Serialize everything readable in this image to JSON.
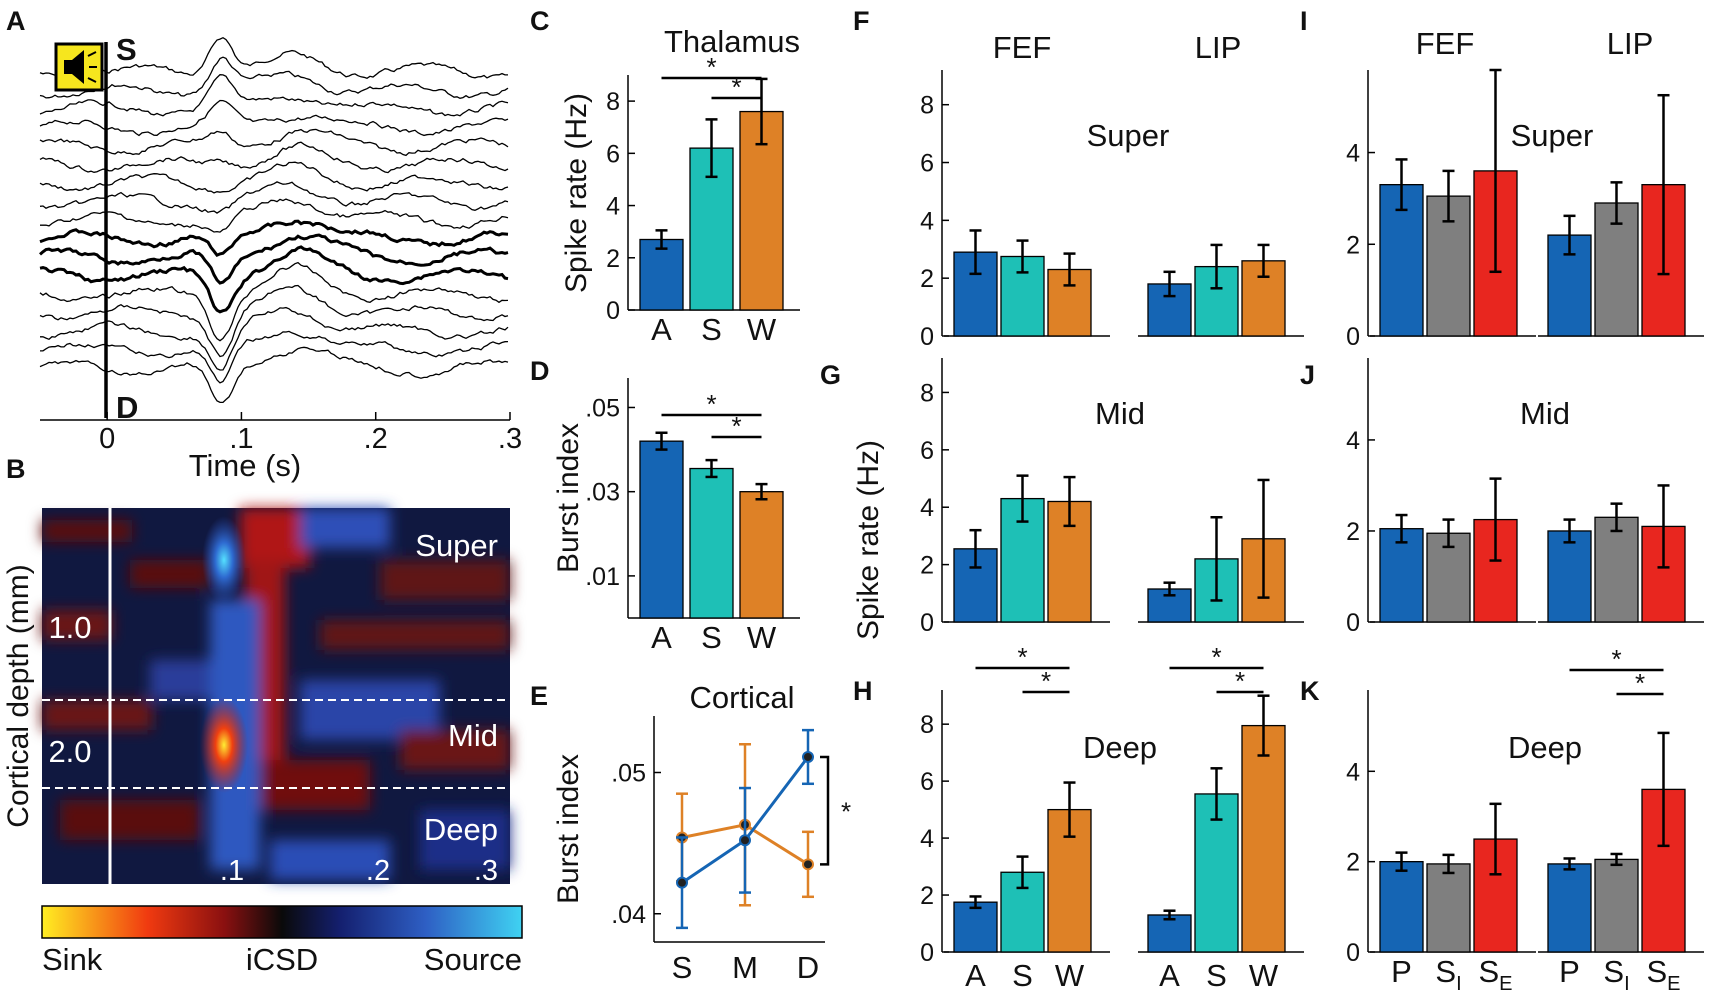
{
  "colors": {
    "A": "#1565b4",
    "S": "#1ec0b6",
    "W": "#de8126",
    "P": "#1565b4",
    "SI": "#7f7f7f",
    "SE": "#e8261f",
    "icon_bg": "#f6e61e"
  },
  "icons": {
    "speaker": "speaker-icon"
  },
  "panel_labels": {
    "A": "A",
    "B": "B",
    "C": "C",
    "D": "D",
    "E": "E",
    "F": "F",
    "G": "G",
    "H": "H",
    "I": "I",
    "J": "J",
    "K": "K"
  },
  "layer_names": {
    "super": "Super",
    "mid": "Mid",
    "deep": "Deep"
  },
  "sig_star": "*",
  "chart_data": [
    {
      "id": "A",
      "type": "line",
      "title": "",
      "xlabel": "Time (s)",
      "ylabel": "",
      "x_ticks": [
        "0",
        ".1",
        ".2",
        ".3"
      ],
      "xlim": [
        -0.05,
        0.3
      ],
      "annotations": {
        "top": "S",
        "bottom": "D"
      },
      "n_traces": 17,
      "bold_traces": [
        9,
        10,
        11
      ]
    },
    {
      "id": "B",
      "type": "heatmap",
      "ylabel": "Cortical depth (mm)",
      "y_ticks": [
        "1.0",
        "2.0"
      ],
      "x_ticks": [
        ".1",
        ".2",
        ".3"
      ],
      "layers": [
        "Super",
        "Mid",
        "Deep"
      ],
      "colorbar": {
        "left": "Sink",
        "center": "iCSD",
        "right": "Source"
      }
    },
    {
      "id": "C",
      "type": "bar",
      "title": "Thalamus",
      "categories": [
        "A",
        "S",
        "W"
      ],
      "values": [
        2.7,
        6.2,
        7.6
      ],
      "errors": [
        0.35,
        1.1,
        1.25
      ],
      "ylabel": "Spike rate (Hz)",
      "ylim": [
        0,
        9
      ],
      "yticks": [
        "0",
        "2",
        "4",
        "6",
        "8"
      ]
    },
    {
      "id": "D",
      "type": "bar",
      "title": "",
      "categories": [
        "A",
        "S",
        "W"
      ],
      "values": [
        0.042,
        0.0355,
        0.03
      ],
      "errors": [
        0.002,
        0.002,
        0.0018
      ],
      "ylabel": "Burst index",
      "ylim": [
        0,
        0.057
      ],
      "yticks": [
        ".01",
        ".03",
        ".05"
      ]
    },
    {
      "id": "E",
      "type": "line",
      "title": "Cortical",
      "categories": [
        "S",
        "M",
        "D"
      ],
      "ylabel": "Burst index",
      "ylim": [
        0.038,
        0.054
      ],
      "yticks": [
        ".04",
        ".05"
      ],
      "series": [
        {
          "name": "A",
          "values": [
            0.0422,
            0.0452,
            0.0511
          ],
          "errors": [
            0.0032,
            0.0037,
            0.0019
          ]
        },
        {
          "name": "W",
          "values": [
            0.0454,
            0.0463,
            0.0435
          ],
          "errors": [
            0.0031,
            0.0057,
            0.0023
          ]
        }
      ]
    },
    {
      "id": "F",
      "type": "bar",
      "layer": "Super",
      "groups": [
        "FEF",
        "LIP"
      ],
      "categories": [
        "A",
        "S",
        "W"
      ],
      "series": [
        {
          "name": "FEF",
          "values": [
            2.9,
            2.75,
            2.3
          ],
          "errors": [
            0.75,
            0.55,
            0.55
          ]
        },
        {
          "name": "LIP",
          "values": [
            1.8,
            2.4,
            2.6
          ],
          "errors": [
            0.42,
            0.75,
            0.55
          ]
        }
      ],
      "ylabel": "",
      "ylim": [
        0,
        9.2
      ],
      "yticks": [
        "0",
        "2",
        "4",
        "6",
        "8"
      ]
    },
    {
      "id": "G",
      "type": "bar",
      "layer": "Mid",
      "groups": [
        "FEF",
        "LIP"
      ],
      "categories": [
        "A",
        "S",
        "W"
      ],
      "series": [
        {
          "name": "FEF",
          "values": [
            2.55,
            4.3,
            4.2
          ],
          "errors": [
            0.65,
            0.8,
            0.85
          ]
        },
        {
          "name": "LIP",
          "values": [
            1.15,
            2.2,
            2.9
          ],
          "errors": [
            0.22,
            1.45,
            2.05
          ]
        }
      ],
      "ylabel": "Spike rate (Hz)",
      "ylim": [
        0,
        9.2
      ],
      "yticks": [
        "0",
        "2",
        "4",
        "6",
        "8"
      ]
    },
    {
      "id": "H",
      "type": "bar",
      "layer": "Deep",
      "groups": [
        "FEF",
        "LIP"
      ],
      "categories": [
        "A",
        "S",
        "W"
      ],
      "series": [
        {
          "name": "FEF",
          "values": [
            1.75,
            2.8,
            5.0
          ],
          "errors": [
            0.2,
            0.55,
            0.95
          ]
        },
        {
          "name": "LIP",
          "values": [
            1.3,
            5.55,
            7.95
          ],
          "errors": [
            0.15,
            0.9,
            1.05
          ]
        }
      ],
      "ylabel": "",
      "ylim": [
        0,
        9.2
      ],
      "yticks": [
        "0",
        "2",
        "4",
        "6",
        "8"
      ]
    },
    {
      "id": "I",
      "type": "bar",
      "layer": "Super",
      "groups": [
        "FEF",
        "LIP"
      ],
      "categories": [
        "P",
        "SI",
        "SE"
      ],
      "series": [
        {
          "name": "FEF",
          "values": [
            3.3,
            3.05,
            3.6
          ],
          "errors": [
            0.55,
            0.55,
            2.2
          ]
        },
        {
          "name": "LIP",
          "values": [
            2.2,
            2.9,
            3.3
          ],
          "errors": [
            0.42,
            0.45,
            1.95
          ]
        }
      ],
      "ylabel": "",
      "ylim": [
        0,
        5.8
      ],
      "yticks": [
        "0",
        "2",
        "4"
      ]
    },
    {
      "id": "J",
      "type": "bar",
      "layer": "Mid",
      "groups": [
        "FEF",
        "LIP"
      ],
      "categories": [
        "P",
        "SI",
        "SE"
      ],
      "series": [
        {
          "name": "FEF",
          "values": [
            2.05,
            1.95,
            2.25
          ],
          "errors": [
            0.3,
            0.3,
            0.9
          ]
        },
        {
          "name": "LIP",
          "values": [
            2.0,
            2.3,
            2.1
          ],
          "errors": [
            0.25,
            0.3,
            0.9
          ]
        }
      ],
      "ylabel": "",
      "ylim": [
        0,
        5.8
      ],
      "yticks": [
        "0",
        "2",
        "4"
      ]
    },
    {
      "id": "K",
      "type": "bar",
      "layer": "Deep",
      "groups": [
        "FEF",
        "LIP"
      ],
      "categories": [
        "P",
        "SI",
        "SE"
      ],
      "series": [
        {
          "name": "FEF",
          "values": [
            2.0,
            1.95,
            2.5
          ],
          "errors": [
            0.2,
            0.2,
            0.78
          ]
        },
        {
          "name": "LIP",
          "values": [
            1.95,
            2.05,
            3.6
          ],
          "errors": [
            0.12,
            0.12,
            1.25
          ]
        }
      ],
      "ylabel": "",
      "ylim": [
        0,
        5.8
      ],
      "yticks": [
        "0",
        "2",
        "4"
      ]
    }
  ]
}
